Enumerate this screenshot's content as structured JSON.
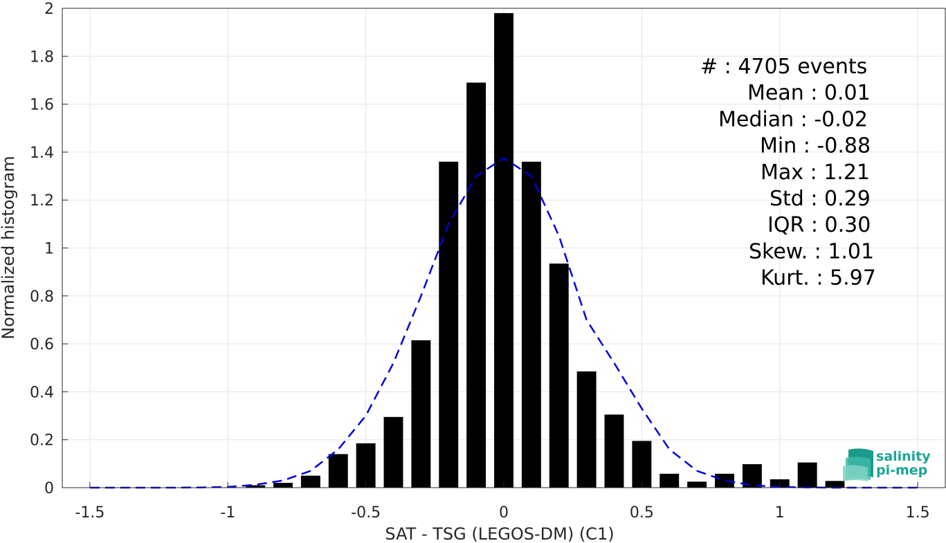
{
  "chart_data": {
    "type": "bar",
    "xlabel": "SAT - TSG (LEGOS-DM) (C1)",
    "ylabel": "Normalized histogram",
    "xlim": [
      -1.6,
      1.6
    ],
    "ylim": [
      0,
      2
    ],
    "grid": true,
    "x_ticks": [
      -1.5,
      -1,
      -0.5,
      0,
      0.5,
      1,
      1.5
    ],
    "x_tick_labels": [
      "-1.5",
      "-1",
      "-0.5",
      "0",
      "0.5",
      "1",
      "1.5"
    ],
    "y_ticks": [
      0,
      0.2,
      0.4,
      0.6,
      0.8,
      1,
      1.2,
      1.4,
      1.6,
      1.8,
      2
    ],
    "y_tick_labels": [
      "0",
      "0.2",
      "0.4",
      "0.6",
      "0.8",
      "1",
      "1.2",
      "1.4",
      "1.6",
      "1.8",
      "2"
    ],
    "bar_width": 0.07,
    "series": [
      {
        "x": [
          -1.4,
          -1.3,
          -1.2,
          -1.1,
          -1.0,
          -0.9,
          -0.8,
          -0.7,
          -0.6,
          -0.5,
          -0.4,
          -0.3,
          -0.2,
          -0.1,
          0.0,
          0.1,
          0.2,
          0.3,
          0.4,
          0.5,
          0.6,
          0.7,
          0.8,
          0.9,
          1.0,
          1.1,
          1.2,
          1.3,
          1.4
        ],
        "values": [
          0,
          0,
          0,
          0,
          0,
          0.01,
          0.02,
          0.05,
          0.14,
          0.185,
          0.295,
          0.615,
          1.36,
          1.69,
          1.98,
          1.36,
          0.935,
          0.485,
          0.305,
          0.195,
          0.058,
          0.025,
          0.058,
          0.098,
          0.035,
          0.105,
          0.028,
          0,
          0
        ],
        "color": "#000000"
      },
      {
        "type": "line",
        "style": "dashed",
        "color": "#0000dd",
        "x": [
          -1.5,
          -1.4,
          -1.3,
          -1.2,
          -1.1,
          -1.0,
          -0.9,
          -0.8,
          -0.7,
          -0.6,
          -0.5,
          -0.4,
          -0.3,
          -0.2,
          -0.1,
          0.0,
          0.1,
          0.2,
          0.3,
          0.4,
          0.5,
          0.6,
          0.7,
          0.8,
          0.9,
          1.0,
          1.1,
          1.2,
          1.3,
          1.4,
          1.5
        ],
        "values": [
          0,
          0,
          0,
          0,
          0.001,
          0.003,
          0.012,
          0.03,
          0.07,
          0.16,
          0.3,
          0.52,
          0.8,
          1.1,
          1.3,
          1.375,
          1.3,
          1.05,
          0.7,
          0.52,
          0.33,
          0.16,
          0.07,
          0.03,
          0.01,
          0.003,
          0.001,
          0,
          0,
          0,
          0
        ]
      }
    ],
    "annotations": [
      "#  : 4705 events",
      "Mean : 0.01",
      "Median : -0.02",
      "Min : -0.88",
      "Max : 1.21",
      "Std : 0.29",
      "IQR : 0.30",
      "Skew. : 1.01",
      "Kurt. : 5.97"
    ]
  },
  "logo": {
    "line1": "salinity",
    "line2": "pi-mep",
    "color": "#1aa596"
  }
}
